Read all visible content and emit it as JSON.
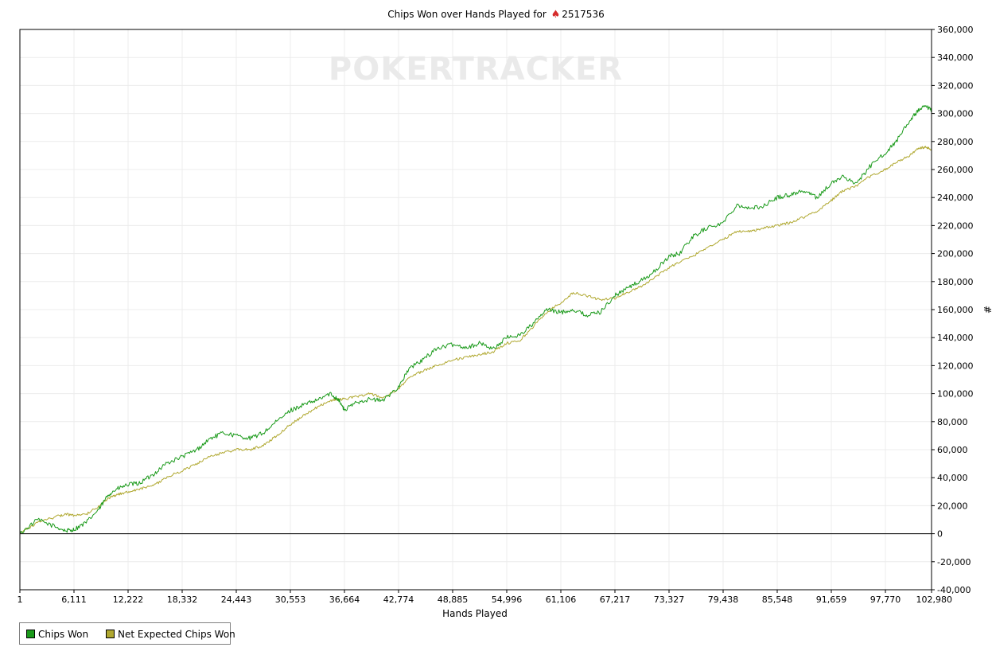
{
  "title_prefix": "Chips Won over Hands Played for",
  "player_id": "2517536",
  "spade_icon": "spade-icon",
  "watermark": "POKERTRACKER",
  "chart_data": {
    "type": "line",
    "xlabel": "Hands Played",
    "ylabel": "#",
    "xlim": [
      1,
      102980
    ],
    "ylim": [
      -40000,
      360000
    ],
    "x_ticks": [
      "1",
      "6,111",
      "12,222",
      "18,332",
      "24,443",
      "30,553",
      "36,664",
      "42,774",
      "48,885",
      "54,996",
      "61,106",
      "67,217",
      "73,327",
      "79,438",
      "85,548",
      "91,659",
      "97,770",
      "102,980"
    ],
    "y_ticks": [
      "-40,000",
      "-20,000",
      "0",
      "20,000",
      "40,000",
      "60,000",
      "80,000",
      "100,000",
      "120,000",
      "140,000",
      "160,000",
      "180,000",
      "200,000",
      "220,000",
      "240,000",
      "260,000",
      "280,000",
      "300,000",
      "320,000",
      "340,000",
      "360,000"
    ],
    "grid": true,
    "legend_position": "bottom-left",
    "x": [
      1,
      2000,
      4000,
      5200,
      6111,
      7500,
      9000,
      10000,
      11000,
      12222,
      13500,
      15000,
      16500,
      18332,
      20000,
      21500,
      23000,
      24443,
      26000,
      27500,
      29000,
      30553,
      32000,
      33500,
      35000,
      36000,
      36664,
      38000,
      39500,
      41000,
      42774,
      44000,
      45500,
      47000,
      48885,
      50500,
      52000,
      53500,
      54996,
      56500,
      58000,
      59500,
      61106,
      62500,
      64000,
      65500,
      67217,
      68500,
      70000,
      71500,
      73327,
      74500,
      76000,
      77500,
      79438,
      81000,
      82500,
      84000,
      85548,
      87000,
      88500,
      90000,
      91659,
      93000,
      94500,
      96000,
      97770,
      99000,
      100500,
      101500,
      102300,
      102980
    ],
    "series": [
      {
        "name": "Chips Won",
        "color": "#1a9a1a",
        "values": [
          0,
          10000,
          5000,
          2000,
          3000,
          8000,
          18000,
          28000,
          32000,
          35000,
          36000,
          42000,
          50000,
          55000,
          60000,
          68000,
          72000,
          70000,
          68000,
          72000,
          80000,
          88000,
          92000,
          95000,
          100000,
          96000,
          88000,
          94000,
          96000,
          95000,
          105000,
          118000,
          124000,
          132000,
          135000,
          133000,
          136000,
          132000,
          140000,
          142000,
          150000,
          160000,
          158000,
          160000,
          156000,
          158000,
          170000,
          175000,
          180000,
          186000,
          198000,
          200000,
          212000,
          218000,
          222000,
          235000,
          232000,
          234000,
          240000,
          242000,
          245000,
          240000,
          250000,
          255000,
          250000,
          262000,
          272000,
          280000,
          295000,
          302000,
          305000,
          302000
        ]
      },
      {
        "name": "Net Expected Chips Won",
        "color": "#b0a830",
        "values": [
          0,
          8000,
          12000,
          14000,
          13000,
          14000,
          20000,
          25000,
          28000,
          30000,
          32000,
          34000,
          40000,
          45000,
          50000,
          55000,
          58000,
          60000,
          60000,
          63000,
          70000,
          78000,
          84000,
          90000,
          95000,
          96000,
          96000,
          98000,
          100000,
          97000,
          103000,
          112000,
          116000,
          120000,
          124000,
          126000,
          128000,
          130000,
          136000,
          138000,
          148000,
          158000,
          165000,
          172000,
          170000,
          167000,
          168000,
          172000,
          176000,
          182000,
          190000,
          194000,
          198000,
          204000,
          210000,
          216000,
          216000,
          218000,
          220000,
          222000,
          226000,
          230000,
          238000,
          245000,
          248000,
          255000,
          260000,
          265000,
          270000,
          275000,
          276000,
          274000
        ]
      }
    ]
  }
}
